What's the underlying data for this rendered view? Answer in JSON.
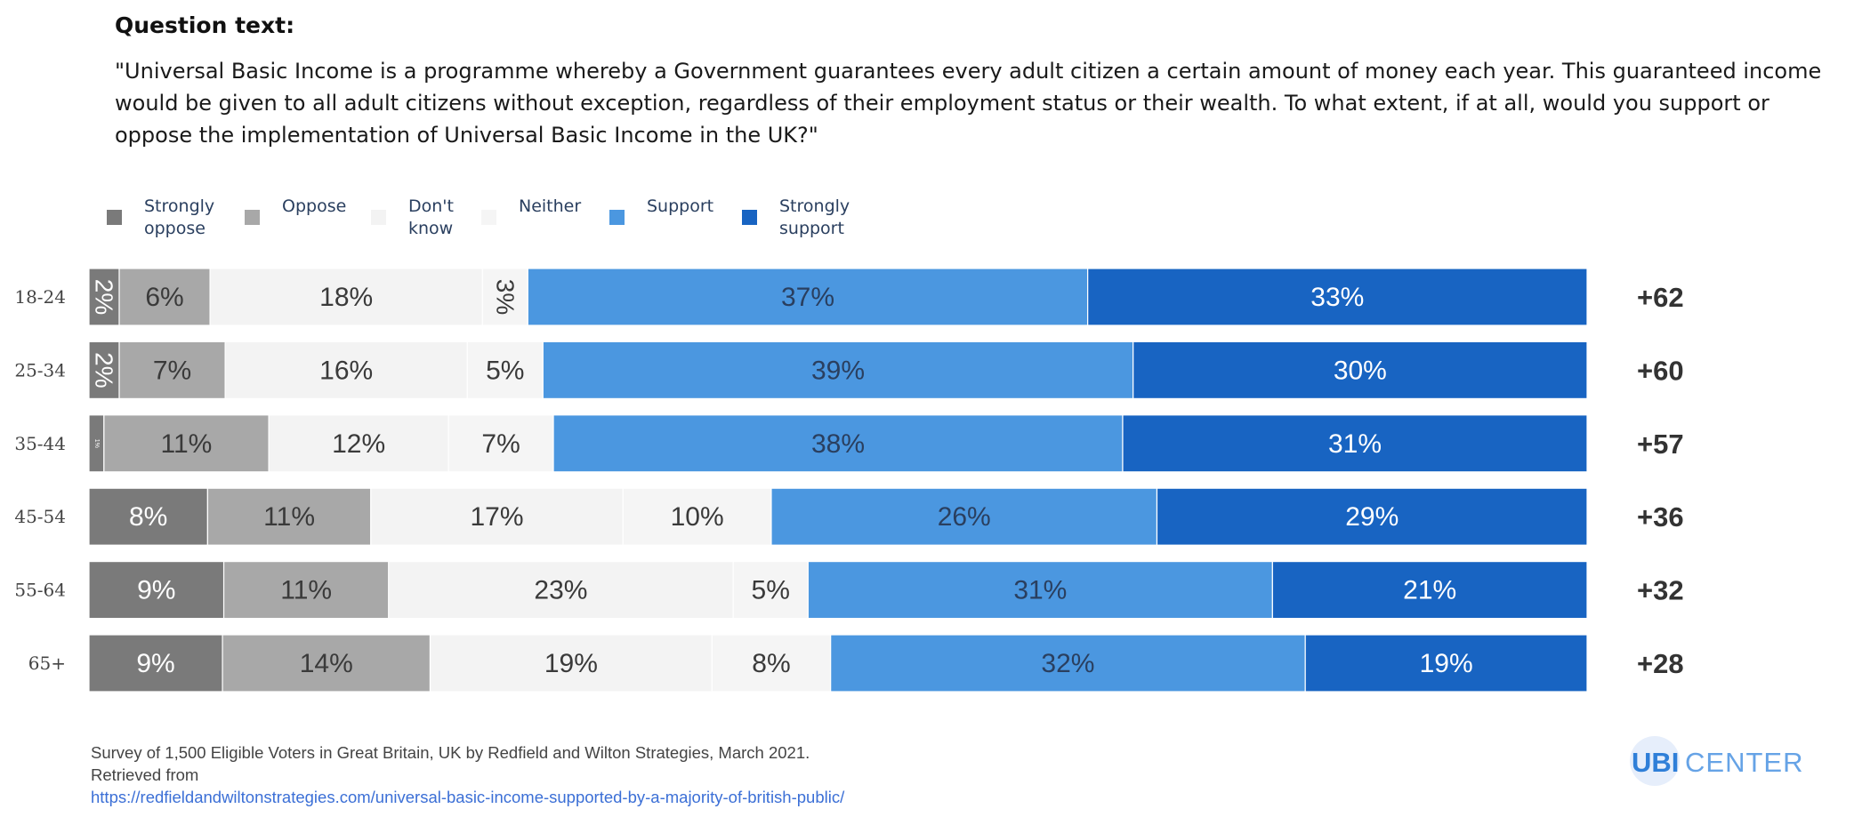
{
  "question": {
    "label": "Question text:",
    "text": "\"Universal Basic Income is a programme whereby a Government guarantees every adult citizen a certain amount of money each year. This guaranteed income would be given to all adult citizens without exception, regardless of their employment status or their wealth. To what extent, if at all, would you support or oppose the implementation of Universal Basic Income in the UK?\""
  },
  "chart_data": {
    "type": "bar",
    "orientation": "horizontal",
    "stacked": true,
    "normalized": true,
    "categories": [
      "18-24",
      "25-34",
      "35-44",
      "45-54",
      "55-64",
      "65+"
    ],
    "series": [
      {
        "name": "Strongly oppose",
        "name_lines": [
          "Strongly",
          "oppose"
        ],
        "color": "#7a7a7a",
        "text_color": "#ffffff",
        "values": [
          2,
          2,
          1,
          8,
          9,
          9
        ]
      },
      {
        "name": "Oppose",
        "name_lines": [
          "Oppose"
        ],
        "color": "#a8a8a8",
        "text_color": "#3a3a3a",
        "values": [
          6,
          7,
          11,
          11,
          11,
          14
        ]
      },
      {
        "name": "Don't know",
        "name_lines": [
          "Don't",
          "know"
        ],
        "color": "#f3f3f3",
        "text_color": "#3a3a3a",
        "values": [
          18,
          16,
          12,
          17,
          23,
          19
        ]
      },
      {
        "name": "Neither",
        "name_lines": [
          "Neither"
        ],
        "color": "#f5f5f5",
        "text_color": "#3a3a3a",
        "values": [
          3,
          5,
          7,
          10,
          5,
          8
        ]
      },
      {
        "name": "Support",
        "name_lines": [
          "Support"
        ],
        "color": "#4b97e0",
        "text_color": "#2a3f5f",
        "values": [
          37,
          39,
          38,
          26,
          31,
          32
        ]
      },
      {
        "name": "Strongly support",
        "name_lines": [
          "Strongly",
          "support"
        ],
        "color": "#1864c2",
        "text_color": "#ffffff",
        "values": [
          33,
          30,
          31,
          29,
          21,
          19
        ]
      }
    ],
    "bar_labels": [
      [
        "2%",
        "6%",
        "18%",
        "3%",
        "37%",
        "33%"
      ],
      [
        "2%",
        "7%",
        "16%",
        "5%",
        "39%",
        "30%"
      ],
      [
        "1%",
        "11%",
        "12%",
        "7%",
        "38%",
        "31%"
      ],
      [
        "8%",
        "11%",
        "17%",
        "10%",
        "26%",
        "29%"
      ],
      [
        "9%",
        "11%",
        "23%",
        "5%",
        "31%",
        "21%"
      ],
      [
        "9%",
        "14%",
        "19%",
        "8%",
        "32%",
        "19%"
      ]
    ],
    "net_support": [
      "+62",
      "+60",
      "+57",
      "+36",
      "+32",
      "+28"
    ],
    "legend_position": "top-left",
    "grid": false
  },
  "footnote": {
    "line1": "Survey of 1,500 Eligible Voters in Great Britain, UK by Redfield and Wilton Strategies, March 2021.",
    "line2": "Retrieved from",
    "link": "https://redfieldandwiltonstrategies.com/universal-basic-income-supported-by-a-majority-of-british-public/"
  },
  "logo": {
    "ubi": "UBI",
    "center": "CENTER"
  }
}
